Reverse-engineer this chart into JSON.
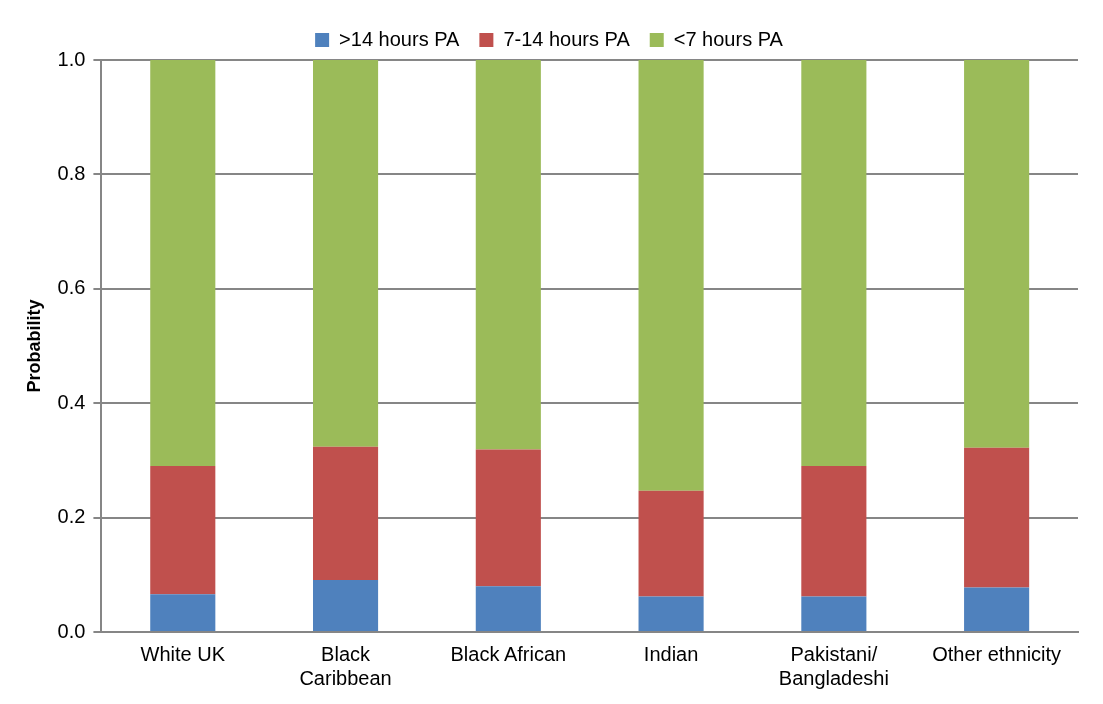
{
  "chart_data": {
    "type": "bar",
    "stacked": true,
    "ylabel": "Probability",
    "categories": [
      "White UK",
      "Black Caribbean",
      "Black African",
      "Indian",
      "Pakistani/Bangladeshi",
      "Other ethnicity"
    ],
    "series": [
      {
        "name": ">14 hours PA",
        "color": "#4f81bd",
        "values": [
          0.066,
          0.091,
          0.08,
          0.062,
          0.062,
          0.078
        ]
      },
      {
        "name": "7-14 hours PA",
        "color": "#c0504d",
        "values": [
          0.224,
          0.233,
          0.239,
          0.185,
          0.228,
          0.244
        ]
      },
      {
        "name": "<7 hours PA",
        "color": "#9bbb59",
        "values": [
          0.71,
          0.676,
          0.681,
          0.753,
          0.71,
          0.678
        ]
      }
    ],
    "ylim": [
      0,
      1
    ],
    "yticks": [
      {
        "value": 0,
        "label": "0.0"
      },
      {
        "value": 0.2,
        "label": "0.2"
      },
      {
        "value": 0.4,
        "label": "0.4"
      },
      {
        "value": 0.6,
        "label": "0.6"
      },
      {
        "value": 0.8,
        "label": "0.8"
      },
      {
        "value": 1,
        "label": "1.0"
      }
    ],
    "grid": "y",
    "legend": "top"
  }
}
